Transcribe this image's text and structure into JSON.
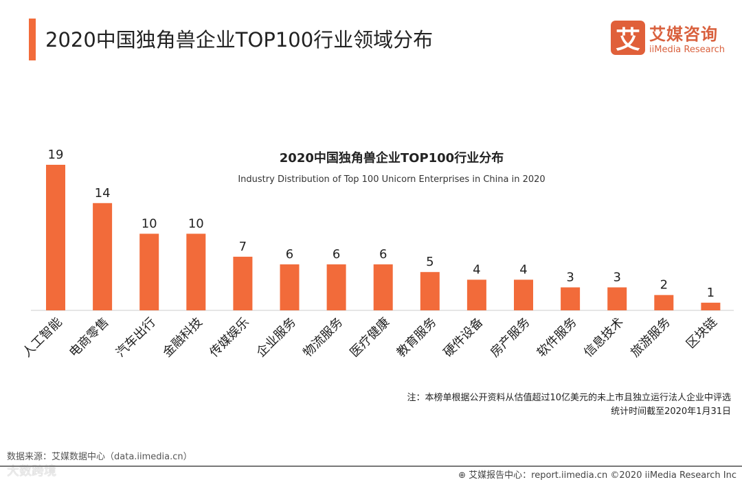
{
  "header": {
    "title": "2020中国独角兽企业TOP100行业领域分布"
  },
  "logo": {
    "mark": "艾",
    "cn": "艾媒咨询",
    "en": "iiMedia Research"
  },
  "chart_data": {
    "type": "bar",
    "title": "2020中国独角兽企业TOP100行业分布",
    "subtitle": "Industry Distribution of Top 100 Unicorn Enterprises in China in 2020",
    "categories": [
      "人工智能",
      "电商零售",
      "汽车出行",
      "金融科技",
      "传媒娱乐",
      "企业服务",
      "物流服务",
      "医疗健康",
      "教育服务",
      "硬件设备",
      "房产服务",
      "软件服务",
      "信息技术",
      "旅游服务",
      "区块链"
    ],
    "values": [
      19,
      14,
      10,
      10,
      7,
      6,
      6,
      6,
      5,
      4,
      4,
      3,
      3,
      2,
      1
    ],
    "ylim": [
      0,
      19
    ],
    "color": "#f26b3a"
  },
  "note": {
    "line1": "注：本榜单根据公开资料从估值超过10亿美元的未上市且独立运行法人企业中评选",
    "line2": "统计时间截至2020年1月31日"
  },
  "footer": {
    "source": "数据来源：艾媒数据中心（data.iimedia.cn）",
    "watermark": "大数跨境",
    "copyright": "⊕ 艾媒报告中心：report.iimedia.cn ©2020 iiMedia Research Inc"
  }
}
